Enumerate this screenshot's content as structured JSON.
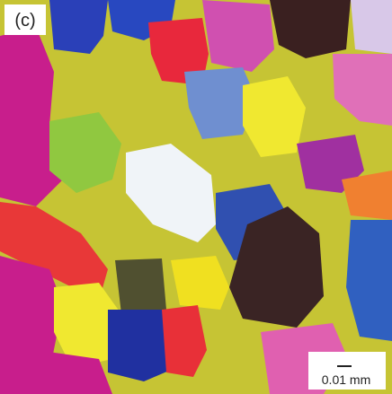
{
  "panel_label": "(c)",
  "scale_bar": {
    "label": "0.01 mm"
  }
}
